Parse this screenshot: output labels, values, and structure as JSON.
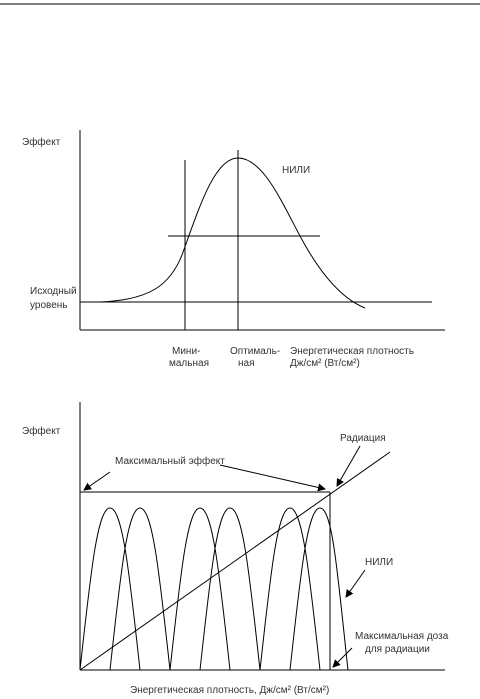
{
  "diagrams": [
    {
      "y_label": "Эффект",
      "curve_label": "НИЛИ",
      "baseline_label": [
        "Исходный",
        "уровень"
      ],
      "minimal_label": [
        "Мини-",
        "мальная"
      ],
      "optimal_label": [
        "Оптималь-",
        "ная"
      ],
      "x_label": [
        "Энергетическая плотность",
        "Дж/см² (Вт/см²)"
      ]
    },
    {
      "y_label": "Эффект",
      "line_label": "Радиация",
      "max_effect_label": "Максимальный эффект",
      "curve_label": "НИЛИ",
      "max_dose_label": [
        "Максимальная доза",
        "для радиации"
      ],
      "x_label": "Энергетическая плотность, Дж/см² (Вт/см²)"
    }
  ]
}
